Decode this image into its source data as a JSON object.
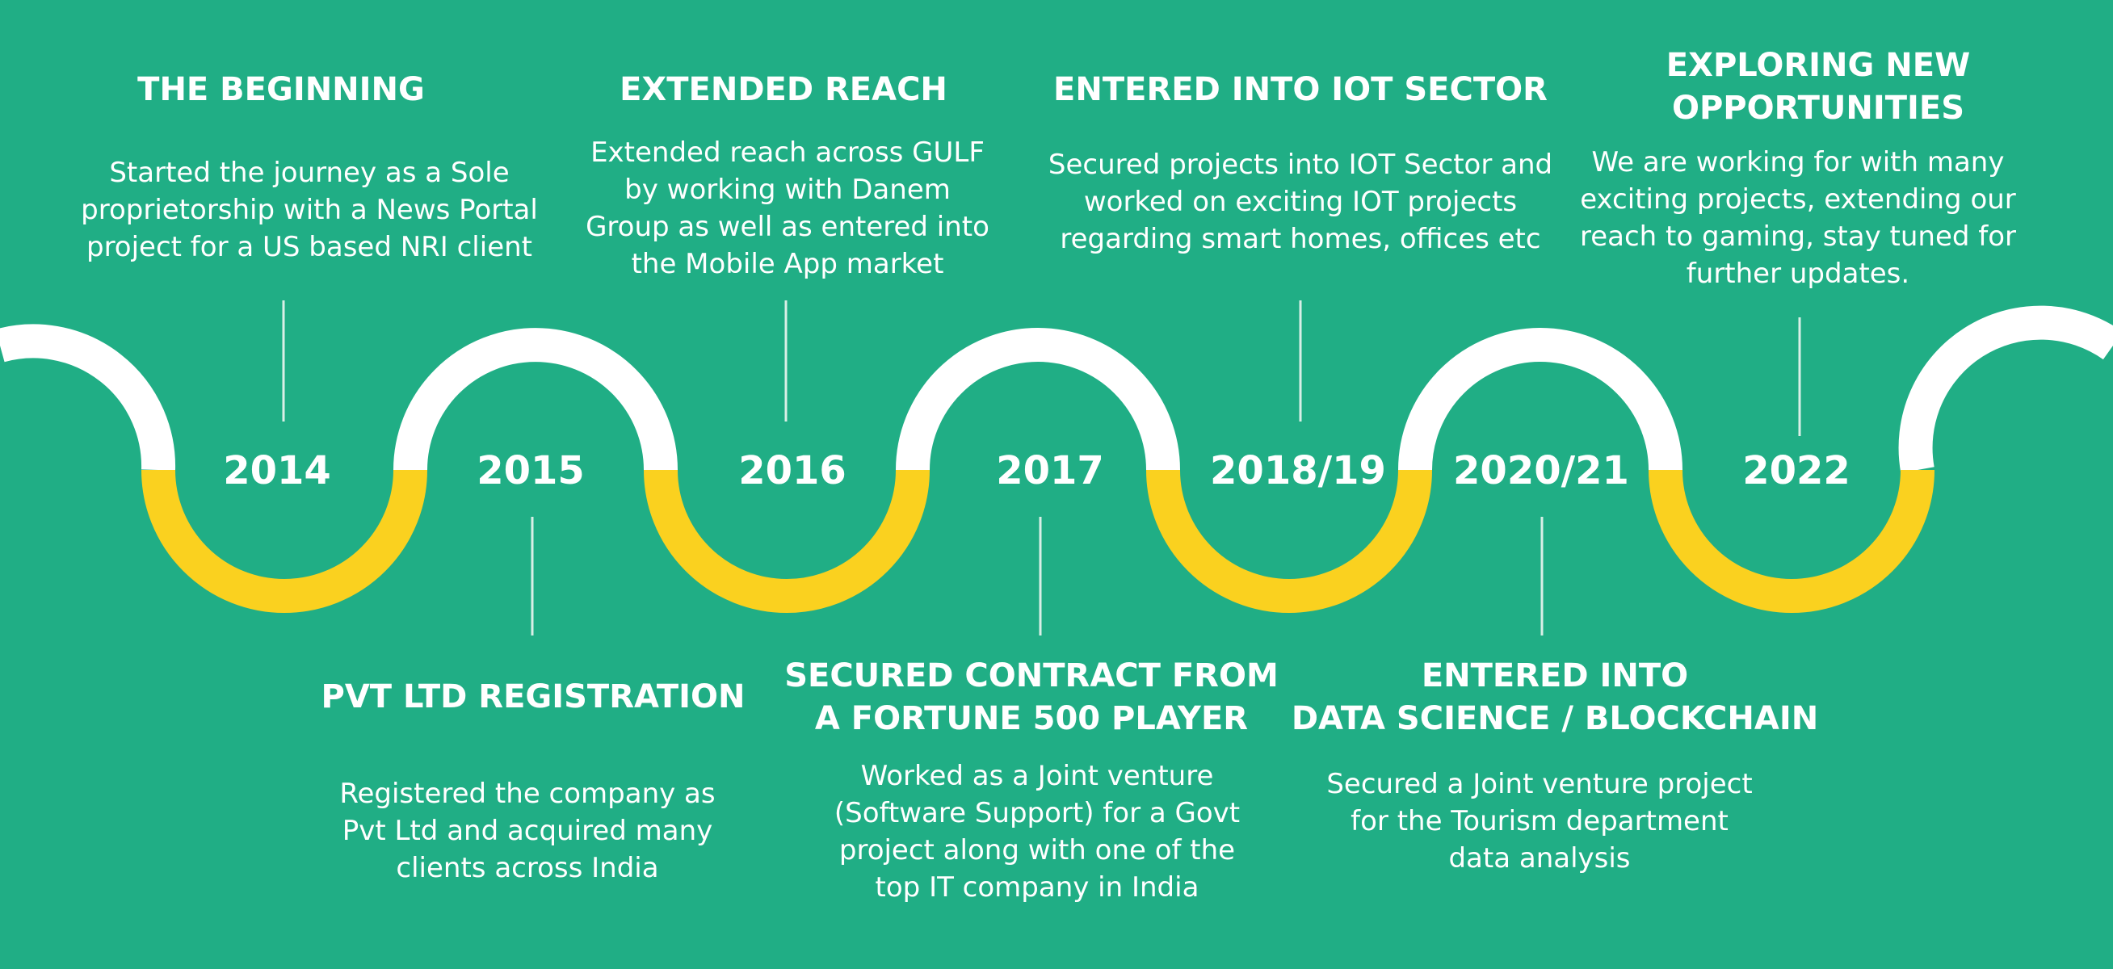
{
  "colors": {
    "background": "#20ae85",
    "wave_top": "#ffffff",
    "wave_bottom": "#fad11f",
    "connector": "#d9efe6",
    "text": "#ffffff"
  },
  "milestones": [
    {
      "year": "2014",
      "title": "THE BEGINNING",
      "description": "Started the journey as a Sole\nproprietorship with a News Portal\nproject for a US based NRI client"
    },
    {
      "year": "2015",
      "title": "PVT LTD REGISTRATION",
      "description": "Registered the company as\nPvt Ltd and acquired many\nclients across India"
    },
    {
      "year": "2016",
      "title": "EXTENDED REACH",
      "description": "Extended reach across GULF\nby working with Danem\nGroup as well as entered into\nthe Mobile App market"
    },
    {
      "year": "2017",
      "title": "SECURED CONTRACT FROM\nA FORTUNE 500 PLAYER",
      "description": "Worked as a Joint venture\n(Software Support) for a Govt\nproject along with one of the\ntop IT company in India"
    },
    {
      "year": "2018/19",
      "title": "ENTERED INTO IOT SECTOR",
      "description": "Secured projects into IOT Sector and\nworked on exciting IOT projects\nregarding smart homes, offices etc"
    },
    {
      "year": "2020/21",
      "title": "ENTERED INTO\nDATA SCIENCE / BLOCKCHAIN",
      "description": "Secured a Joint venture project\nfor the Tourism department\ndata analysis"
    },
    {
      "year": "2022",
      "title": "EXPLORING NEW\nOPPORTUNITIES",
      "description": "We are working for with many\nexciting projects, extending our\nreach to gaming, stay tuned for\nfurther updates."
    }
  ]
}
